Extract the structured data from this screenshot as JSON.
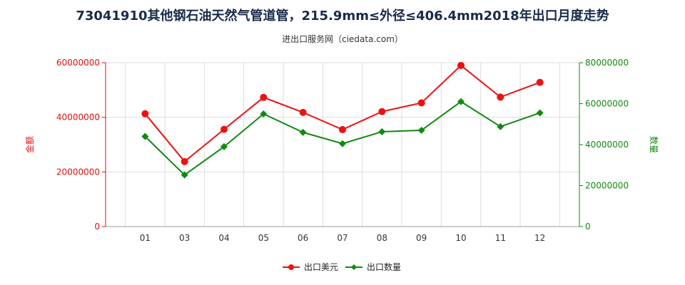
{
  "title": "73041910其他钢石油天然气管道管，215.9mm≤外径≤406.4mm2018年出口月度走势",
  "subtitle": "进出口服务网（ciedata.com）",
  "colors": {
    "left_axis": "#dd1111",
    "right_axis": "#118811",
    "series_value": "#ee1111",
    "series_qty": "#118811"
  },
  "chart_data": {
    "type": "line",
    "categories": [
      "01",
      "03",
      "04",
      "05",
      "06",
      "07",
      "08",
      "09",
      "10",
      "11",
      "12"
    ],
    "ylabel": "金额",
    "y2label": "数量",
    "ylim": [
      0,
      60000000
    ],
    "y2lim": [
      0,
      80000000
    ],
    "yticks": [
      "0",
      "20000000",
      "40000000",
      "60000000"
    ],
    "y2ticks": [
      "0",
      "20000000",
      "40000000",
      "60000000",
      "80000000"
    ],
    "grid": true,
    "legend": "bottom-center",
    "series": [
      {
        "name": "出口美元",
        "axis": "left",
        "values": [
          41300000,
          23800000,
          35600000,
          47300000,
          41800000,
          35500000,
          42100000,
          45300000,
          59000000,
          47400000,
          52800000
        ]
      },
      {
        "name": "出口数量",
        "axis": "right",
        "values": [
          44000000,
          25200000,
          39000000,
          55000000,
          46000000,
          40500000,
          46300000,
          47000000,
          61000000,
          48800000,
          55500000
        ]
      }
    ]
  }
}
